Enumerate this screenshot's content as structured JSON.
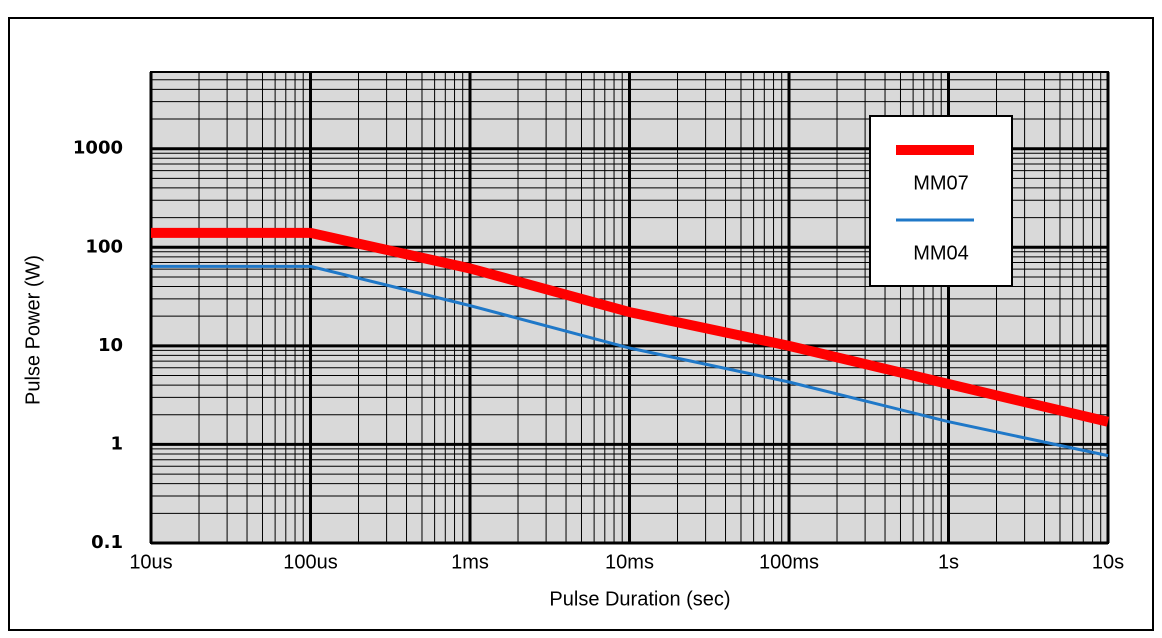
{
  "chart_data": {
    "type": "line",
    "x_label": "Pulse Duration (sec)",
    "y_label": "Pulse Power  (W)",
    "log_x": true,
    "log_y": true,
    "grid": true,
    "xlim": [
      1e-05,
      10
    ],
    "ylim": [
      0.1,
      6000
    ],
    "xticks": [
      {
        "value": 1e-05,
        "label": "10us"
      },
      {
        "value": 0.0001,
        "label": "100us"
      },
      {
        "value": 0.001,
        "label": "1ms"
      },
      {
        "value": 0.01,
        "label": "10ms"
      },
      {
        "value": 0.1,
        "label": "100ms"
      },
      {
        "value": 1,
        "label": "1s"
      },
      {
        "value": 10,
        "label": "10s"
      }
    ],
    "yticks": [
      0.1,
      1,
      10,
      100,
      1000
    ],
    "x": [
      1e-05,
      0.0001,
      0.001,
      0.01,
      0.1,
      1,
      10
    ],
    "series": [
      {
        "name": "MM07",
        "color": "#ff0000",
        "values": [
          140,
          140,
          61,
          22,
          10,
          4.1,
          1.7
        ]
      },
      {
        "name": "MM04",
        "color": "#1f78c8",
        "values": [
          64,
          64,
          25.6,
          9.5,
          4.3,
          1.7,
          0.77
        ]
      }
    ],
    "legend": "upper right"
  }
}
